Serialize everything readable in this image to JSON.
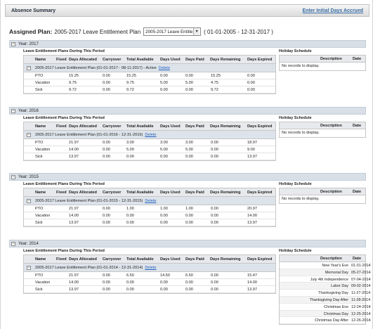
{
  "header": {
    "title": "Absence Summary",
    "link": "Enter Initial Days Accrued"
  },
  "assigned": {
    "label": "Assigned Plan:",
    "plan_name": "2005-2017 Leave Entitlement Plan",
    "selected": "2005-2017 Leave Entitle",
    "range": "( 01-01-2005 - 12-31-2017 )"
  },
  "labels": {
    "plans_heading": "Leave Entitlement Plans During This Period",
    "holiday_heading": "Holiday Schedule",
    "no_records": "No records to display.",
    "delete": "Delete"
  },
  "columns": [
    "Name",
    "Fixed",
    "Days Allocated",
    "Carryover",
    "Total Available",
    "Days Used",
    "Days Paid",
    "Days Remaining",
    "Days Expired"
  ],
  "holiday_columns": [
    "Description",
    "Date"
  ],
  "years": [
    {
      "year_label": "Year: 2017",
      "plan_label": "2005-2017 Leave Entitlement Plan (01-01-2017 - 08-11-2017) - Active",
      "rows": [
        [
          "PTO",
          "",
          "15.25",
          "0.00",
          "15.25",
          "0.00",
          "0.00",
          "15.25",
          "0.00"
        ],
        [
          "Vacation",
          "",
          "9.75",
          "0.00",
          "9.75",
          "5.00",
          "5.00",
          "4.75",
          "0.00"
        ],
        [
          "Sick",
          "",
          "9.72",
          "0.00",
          "9.72",
          "0.00",
          "0.00",
          "9.72",
          "0.00"
        ]
      ],
      "holidays": []
    },
    {
      "year_label": "Year: 2016",
      "plan_label": "2005-2017 Leave Entitlement Plan (01-01-2016 - 12-31-2016)",
      "rows": [
        [
          "PTO",
          "",
          "21.97",
          "0.00",
          "3.00",
          "3.00",
          "3.00",
          "0.00",
          "18.97"
        ],
        [
          "Vacation",
          "",
          "14.00",
          "0.00",
          "5.00",
          "5.00",
          "5.00",
          "0.00",
          "9.00"
        ],
        [
          "Sick",
          "",
          "13.97",
          "0.00",
          "0.00",
          "0.00",
          "0.00",
          "0.00",
          "13.97"
        ]
      ],
      "holidays": []
    },
    {
      "year_label": "Year: 2015",
      "plan_label": "2005-2017 Leave Entitlement Plan (01-01-2015 - 12-31-2015)",
      "rows": [
        [
          "PTO",
          "",
          "21.97",
          "0.00",
          "1.00",
          "1.00",
          "1.00",
          "0.00",
          "20.97"
        ],
        [
          "Vacation",
          "",
          "14.00",
          "0.00",
          "0.00",
          "0.00",
          "0.00",
          "0.00",
          "14.00"
        ],
        [
          "Sick",
          "",
          "13.97",
          "0.00",
          "0.00",
          "0.00",
          "0.00",
          "0.00",
          "13.97"
        ]
      ],
      "holidays": []
    },
    {
      "year_label": "Year: 2014",
      "plan_label": "2005-2017 Leave Entitlement Plan (01-01-2014 - 12-31-2014)",
      "rows": [
        [
          "PTO",
          "",
          "21.97",
          "0.00",
          "6.50",
          "14.50",
          "6.50",
          "0.00",
          "15.47"
        ],
        [
          "Vacation",
          "",
          "14.00",
          "0.00",
          "0.00",
          "0.00",
          "0.00",
          "0.00",
          "14.00"
        ],
        [
          "Sick",
          "",
          "13.97",
          "0.00",
          "0.00",
          "0.00",
          "0.00",
          "0.00",
          "13.97"
        ]
      ],
      "holidays": [
        [
          "New Year's Eve",
          "01-01-2014"
        ],
        [
          "Memorial Day",
          "05-27-2014"
        ],
        [
          "July 4th Independence",
          "07-04-2014"
        ],
        [
          "Labor Day",
          "09-02-2014"
        ],
        [
          "Thanksgiving Day",
          "11-27-2014"
        ],
        [
          "Thanksgiving Day After",
          "11-28-2014"
        ],
        [
          "Christmas Eve",
          "12-24-2014"
        ],
        [
          "Christmas Day",
          "12-25-2014"
        ],
        [
          "Christmas Day After",
          "12-26-2014"
        ]
      ]
    }
  ]
}
